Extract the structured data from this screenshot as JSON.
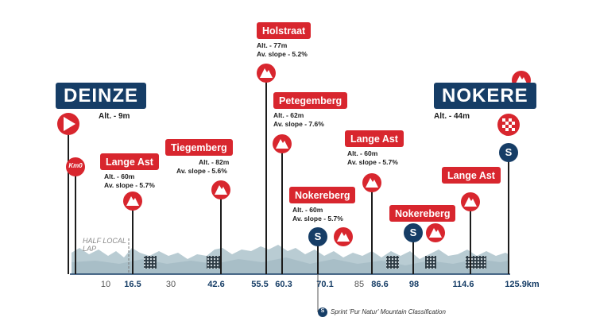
{
  "start": {
    "city": "DEINZE",
    "alt": "Alt. - 9m",
    "km0": "Km0"
  },
  "finish": {
    "city": "NOKERE",
    "alt": "Alt. - 44m"
  },
  "half_lap": [
    "HALF LOCAL",
    "LAP"
  ],
  "climbs": [
    {
      "name": "Lange Ast",
      "km": "16.5",
      "alt": "Alt. - 60m",
      "slope": "Av. slope - 5.7%"
    },
    {
      "name": "Tiegemberg",
      "km": "42.6",
      "alt": "Alt. - 82m",
      "slope": "Av. slope - 5.6%"
    },
    {
      "name": "Holstraat",
      "km": "55.5",
      "alt": "Alt. - 77m",
      "slope": "Av. slope - 5.2%"
    },
    {
      "name": "Petegemberg",
      "km": "60.3",
      "alt": "Alt. - 62m",
      "slope": "Av. slope - 7.6%"
    },
    {
      "name": "Nokereberg",
      "km": "70.1",
      "alt": "Alt. - 60m",
      "slope": "Av. slope - 5.7%"
    },
    {
      "name": "Lange Ast",
      "km": "86.6",
      "alt": "Alt. - 60m",
      "slope": "Av. slope - 5.7%"
    },
    {
      "name": "Nokereberg",
      "km": "98",
      "alt": "",
      "slope": ""
    },
    {
      "name": "Lange Ast",
      "km": "114.6",
      "alt": "",
      "slope": ""
    }
  ],
  "km_markers": [
    {
      "label": "10",
      "bold": false
    },
    {
      "label": "16.5",
      "bold": true
    },
    {
      "label": "30",
      "bold": false
    },
    {
      "label": "42.6",
      "bold": true
    },
    {
      "label": "55.5",
      "bold": true
    },
    {
      "label": "60.3",
      "bold": true
    },
    {
      "label": "70.1",
      "bold": true
    },
    {
      "label": "85",
      "bold": false
    },
    {
      "label": "86.6",
      "bold": true
    },
    {
      "label": "98",
      "bold": true
    },
    {
      "label": "114.6",
      "bold": true
    },
    {
      "label": "125.9km",
      "bold": true
    }
  ],
  "legend": {
    "sprint_icon": "S",
    "text": "Sprint 'Pur Natur' Mountain Classification"
  },
  "colors": {
    "red": "#d8262e",
    "navy": "#163d66",
    "profile": "#b9ccd3",
    "profile_dark": "#9bb3bd"
  }
}
